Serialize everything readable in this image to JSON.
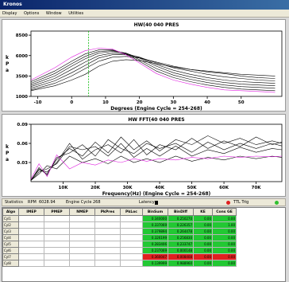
{
  "window": {
    "title": "Kronos"
  },
  "menu": [
    "Display",
    "Options",
    "Window",
    "Utilities"
  ],
  "chart_data": [
    {
      "type": "line",
      "title": "HW(40 040 PRES",
      "xlabel": "Degrees (Engine Cycle = 254-268)",
      "ylabel": "kPa",
      "xlim": [
        -12,
        62
      ],
      "ylim": [
        1000,
        9000
      ],
      "x_ticks": [
        -10,
        0,
        10,
        20,
        30,
        40,
        50
      ],
      "y_ticks": [
        1000,
        3500,
        6000,
        8500
      ],
      "y_tick_labels": [
        "1000",
        "3500",
        "6000",
        "8500"
      ],
      "marker_x": 5,
      "series": [
        {
          "color": "#000000",
          "x": [
            -12,
            -5,
            0,
            4,
            8,
            12,
            16,
            20,
            25,
            30,
            35,
            40,
            45,
            50,
            55,
            60
          ],
          "y": [
            1700,
            2300,
            3000,
            3700,
            4700,
            5300,
            5500,
            5400,
            5000,
            4600,
            4300,
            4100,
            3900,
            3700,
            3600,
            3500
          ]
        },
        {
          "color": "#000000",
          "x": [
            -12,
            -5,
            0,
            4,
            8,
            12,
            16,
            20,
            25,
            30,
            35,
            40,
            45,
            50,
            55,
            60
          ],
          "y": [
            1800,
            2600,
            3500,
            4400,
            5300,
            5800,
            5900,
            5700,
            5200,
            4700,
            4300,
            4000,
            3800,
            3500,
            3300,
            3200
          ]
        },
        {
          "color": "#000000",
          "x": [
            -12,
            -5,
            0,
            4,
            8,
            12,
            16,
            20,
            25,
            30,
            35,
            40,
            45,
            50,
            55,
            60
          ],
          "y": [
            2000,
            2900,
            3900,
            4800,
            5700,
            6100,
            6100,
            5800,
            5100,
            4500,
            4100,
            3700,
            3400,
            3200,
            3000,
            2900
          ]
        },
        {
          "color": "#000000",
          "x": [
            -12,
            -5,
            0,
            4,
            8,
            12,
            16,
            20,
            25,
            30,
            35,
            40,
            45,
            50,
            55,
            60
          ],
          "y": [
            2200,
            3200,
            4300,
            5200,
            6000,
            6300,
            6200,
            5800,
            4900,
            4200,
            3700,
            3300,
            3000,
            2800,
            2700,
            2600
          ]
        },
        {
          "color": "#000000",
          "x": [
            -12,
            -5,
            0,
            4,
            8,
            12,
            16,
            20,
            25,
            30,
            35,
            40,
            45,
            50,
            55,
            60
          ],
          "y": [
            2400,
            3500,
            4700,
            5600,
            6300,
            6500,
            6300,
            5700,
            4700,
            3900,
            3400,
            3000,
            2700,
            2500,
            2400,
            2300
          ]
        },
        {
          "color": "#000000",
          "x": [
            -12,
            -5,
            0,
            4,
            8,
            12,
            16,
            20,
            25,
            30,
            35,
            40,
            45,
            50,
            55,
            60
          ],
          "y": [
            2600,
            3800,
            5000,
            5900,
            6500,
            6600,
            6300,
            5500,
            4400,
            3600,
            3100,
            2700,
            2400,
            2200,
            2100,
            2000
          ]
        },
        {
          "color": "#000000",
          "x": [
            -12,
            -5,
            0,
            4,
            8,
            12,
            16,
            20,
            25,
            30,
            35,
            40,
            45,
            50,
            55,
            60
          ],
          "y": [
            2800,
            4100,
            5300,
            6200,
            6700,
            6700,
            6200,
            5300,
            4100,
            3300,
            2800,
            2400,
            2100,
            1900,
            1800,
            1700
          ]
        },
        {
          "color": "#e020e0",
          "x": [
            -12,
            -5,
            0,
            4,
            8,
            12,
            16,
            20,
            25,
            30,
            35,
            40,
            45,
            50,
            55,
            60
          ],
          "y": [
            3000,
            4500,
            5800,
            6600,
            6900,
            6800,
            6100,
            5100,
            3800,
            3000,
            2500,
            2100,
            1800,
            1700,
            1600,
            1500
          ]
        }
      ]
    },
    {
      "type": "line",
      "title": "HW FFT(40 040 PRES",
      "xlabel": "Frequency(Hz) (Engine Cycle = 254-268)",
      "ylabel": "kPa",
      "xlim": [
        0,
        78000
      ],
      "ylim": [
        0,
        0.09
      ],
      "x_ticks": [
        10000,
        20000,
        30000,
        40000,
        50000,
        60000,
        70000
      ],
      "x_tick_labels": [
        "10K",
        "20K",
        "30K",
        "40K",
        "50K",
        "60K",
        "70K"
      ],
      "y_ticks": [
        0.03,
        0.06,
        0.09
      ],
      "y_tick_labels": [
        "0.03",
        "0.06",
        "0.09"
      ],
      "series": [
        {
          "color": "#000000",
          "x": [
            0,
            2500,
            5000,
            8000,
            12000,
            16000,
            20000,
            24000,
            28000,
            32000,
            36000,
            40000,
            45000,
            50000,
            55000,
            60000,
            65000,
            70000,
            75000,
            78000
          ],
          "y": [
            0.002,
            0.02,
            0.012,
            0.035,
            0.052,
            0.04,
            0.062,
            0.045,
            0.07,
            0.05,
            0.064,
            0.048,
            0.066,
            0.058,
            0.072,
            0.06,
            0.068,
            0.058,
            0.064,
            0.06
          ]
        },
        {
          "color": "#000000",
          "x": [
            0,
            2500,
            5000,
            8000,
            12000,
            16000,
            20000,
            24000,
            28000,
            32000,
            36000,
            40000,
            45000,
            50000,
            55000,
            60000,
            65000,
            70000,
            75000,
            78000
          ],
          "y": [
            0.003,
            0.018,
            0.015,
            0.03,
            0.06,
            0.035,
            0.05,
            0.058,
            0.045,
            0.066,
            0.042,
            0.058,
            0.05,
            0.068,
            0.052,
            0.064,
            0.055,
            0.07,
            0.058,
            0.062
          ]
        },
        {
          "color": "#000000",
          "x": [
            0,
            2500,
            5000,
            8000,
            12000,
            16000,
            20000,
            24000,
            28000,
            32000,
            36000,
            40000,
            45000,
            50000,
            55000,
            60000,
            65000,
            70000,
            75000,
            78000
          ],
          "y": [
            0.002,
            0.022,
            0.01,
            0.038,
            0.045,
            0.058,
            0.04,
            0.066,
            0.052,
            0.044,
            0.06,
            0.052,
            0.06,
            0.046,
            0.062,
            0.05,
            0.06,
            0.052,
            0.06,
            0.056
          ]
        },
        {
          "color": "#000000",
          "x": [
            0,
            2500,
            5000,
            8000,
            12000,
            16000,
            20000,
            24000,
            28000,
            32000,
            36000,
            40000,
            45000,
            50000,
            55000,
            60000,
            65000,
            70000,
            75000,
            78000
          ],
          "y": [
            0.002,
            0.015,
            0.02,
            0.028,
            0.055,
            0.05,
            0.055,
            0.04,
            0.06,
            0.038,
            0.052,
            0.04,
            0.056,
            0.04,
            0.05,
            0.044,
            0.054,
            0.046,
            0.052,
            0.05
          ]
        },
        {
          "color": "#000000",
          "x": [
            0,
            2500,
            5000,
            8000,
            12000,
            16000,
            20000,
            24000,
            28000,
            32000,
            36000,
            40000,
            45000,
            50000,
            55000,
            60000,
            65000,
            70000,
            75000,
            78000
          ],
          "y": [
            0.002,
            0.012,
            0.025,
            0.02,
            0.04,
            0.03,
            0.036,
            0.028,
            0.04,
            0.03,
            0.036,
            0.03,
            0.04,
            0.032,
            0.038,
            0.034,
            0.04,
            0.036,
            0.04,
            0.038
          ]
        },
        {
          "color": "#e020e0",
          "x": [
            0,
            2500,
            5000,
            8000,
            12000,
            16000,
            20000,
            24000,
            28000,
            32000,
            36000,
            40000,
            45000,
            50000,
            55000,
            60000,
            65000,
            70000,
            75000,
            78000
          ],
          "y": [
            0.004,
            0.028,
            0.008,
            0.042,
            0.02,
            0.03,
            0.026,
            0.034,
            0.03,
            0.036,
            0.032,
            0.036,
            0.034,
            0.038,
            0.036,
            0.04,
            0.038,
            0.04,
            0.039,
            0.04
          ]
        }
      ]
    }
  ],
  "statusbar": {
    "statistics": "Statistics",
    "rpm_label": "RPM",
    "rpm_value": "6028.94",
    "engine_cycle_label": "Engine Cycle",
    "engine_cycle_value": "268",
    "latency_label": "Latency",
    "ttl_label": "TTL Trig"
  },
  "table": {
    "columns": [
      "Algo",
      "IMEP",
      "PMEP",
      "NMEP",
      "PkPres",
      "PkLoc",
      "BinSum",
      "BinDiff",
      "KE",
      "Cons GE"
    ],
    "rows": [
      {
        "label": "Cyl1",
        "binsum": "0.340000",
        "bindiff": "0.250270",
        "ke": "0.00",
        "cons": "0.00"
      },
      {
        "label": "Cyl2",
        "binsum": "0.337069",
        "bindiff": "0.226357",
        "ke": "0.00",
        "cons": "1.00"
      },
      {
        "label": "Cyl3",
        "binsum": "0.379894",
        "bindiff": "0.264478",
        "ke": "0.00",
        "cons": "0.00"
      },
      {
        "label": "Cyl4",
        "binsum": "0.326199",
        "bindiff": "0.256830",
        "ke": "0.00",
        "cons": "0.00"
      },
      {
        "label": "Cyl5",
        "binsum": "0.283406",
        "bindiff": "0.233747",
        "ke": "0.00",
        "cons": "0.00"
      },
      {
        "label": "Cyl6",
        "binsum": "0.237069",
        "bindiff": "0.000148",
        "ke": "0.00",
        "cons": "0.00"
      },
      {
        "label": "Cyl7",
        "binsum": "0.360047",
        "bindiff": "0.008408",
        "ke": "0.00",
        "cons": "0.00"
      },
      {
        "label": "Cyl8",
        "binsum": "0.139999",
        "bindiff": "0.988960",
        "ke": "0.00",
        "cons": "0.00"
      }
    ],
    "red_row_index": 6,
    "colors": {
      "green": "#22c833",
      "red": "#e02020"
    }
  }
}
